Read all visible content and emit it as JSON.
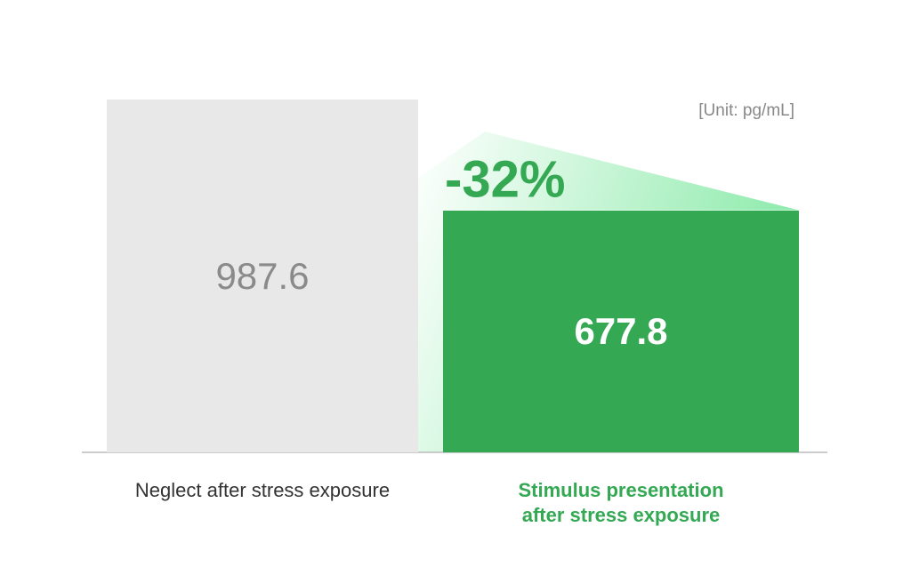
{
  "chart_data": {
    "type": "bar",
    "unit_label": "[Unit: pg/mL]",
    "annotation": "-32%",
    "categories": [
      "Neglect after stress exposure",
      "Stimulus presentation after stress exposure"
    ],
    "values": [
      987.6,
      677.8
    ],
    "colors": [
      "#e8e8e8",
      "#34a853"
    ]
  }
}
